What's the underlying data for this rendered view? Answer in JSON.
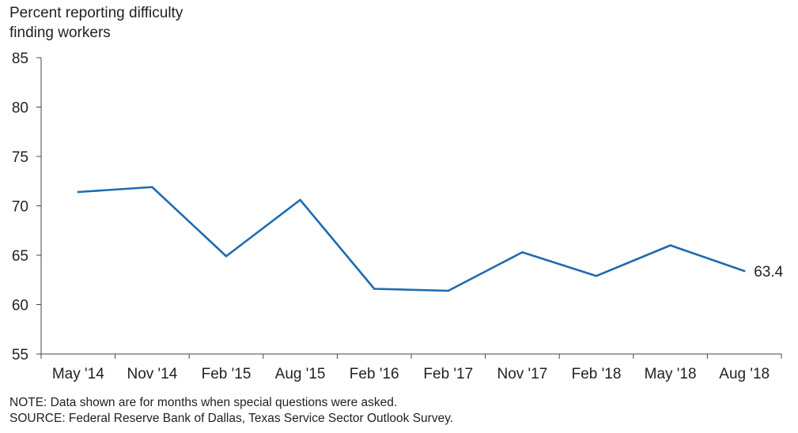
{
  "chart_data": {
    "type": "line",
    "ylabel_lines": [
      "Percent reporting difficulty",
      "finding workers"
    ],
    "title": "",
    "xlabel": "",
    "categories": [
      "May '14",
      "Nov '14",
      "Feb '15",
      "Aug '15",
      "Feb '16",
      "Feb '17",
      "Nov '17",
      "Feb '18",
      "May '18",
      "Aug '18"
    ],
    "series": [
      {
        "values": [
          71.4,
          71.9,
          64.9,
          70.6,
          61.6,
          61.4,
          65.3,
          62.9,
          66.0,
          63.4
        ],
        "color": "#1f6bb0"
      }
    ],
    "end_label": "63.4",
    "ylim": [
      55,
      85
    ],
    "yticks": [
      55,
      60,
      65,
      70,
      75,
      80,
      85
    ],
    "grid": false,
    "legend": "none"
  },
  "notes": {
    "note": "NOTE: Data shown are for months when special questions were asked.",
    "source": "SOURCE: Federal Reserve Bank of Dallas, Texas Service Sector Outlook Survey."
  }
}
